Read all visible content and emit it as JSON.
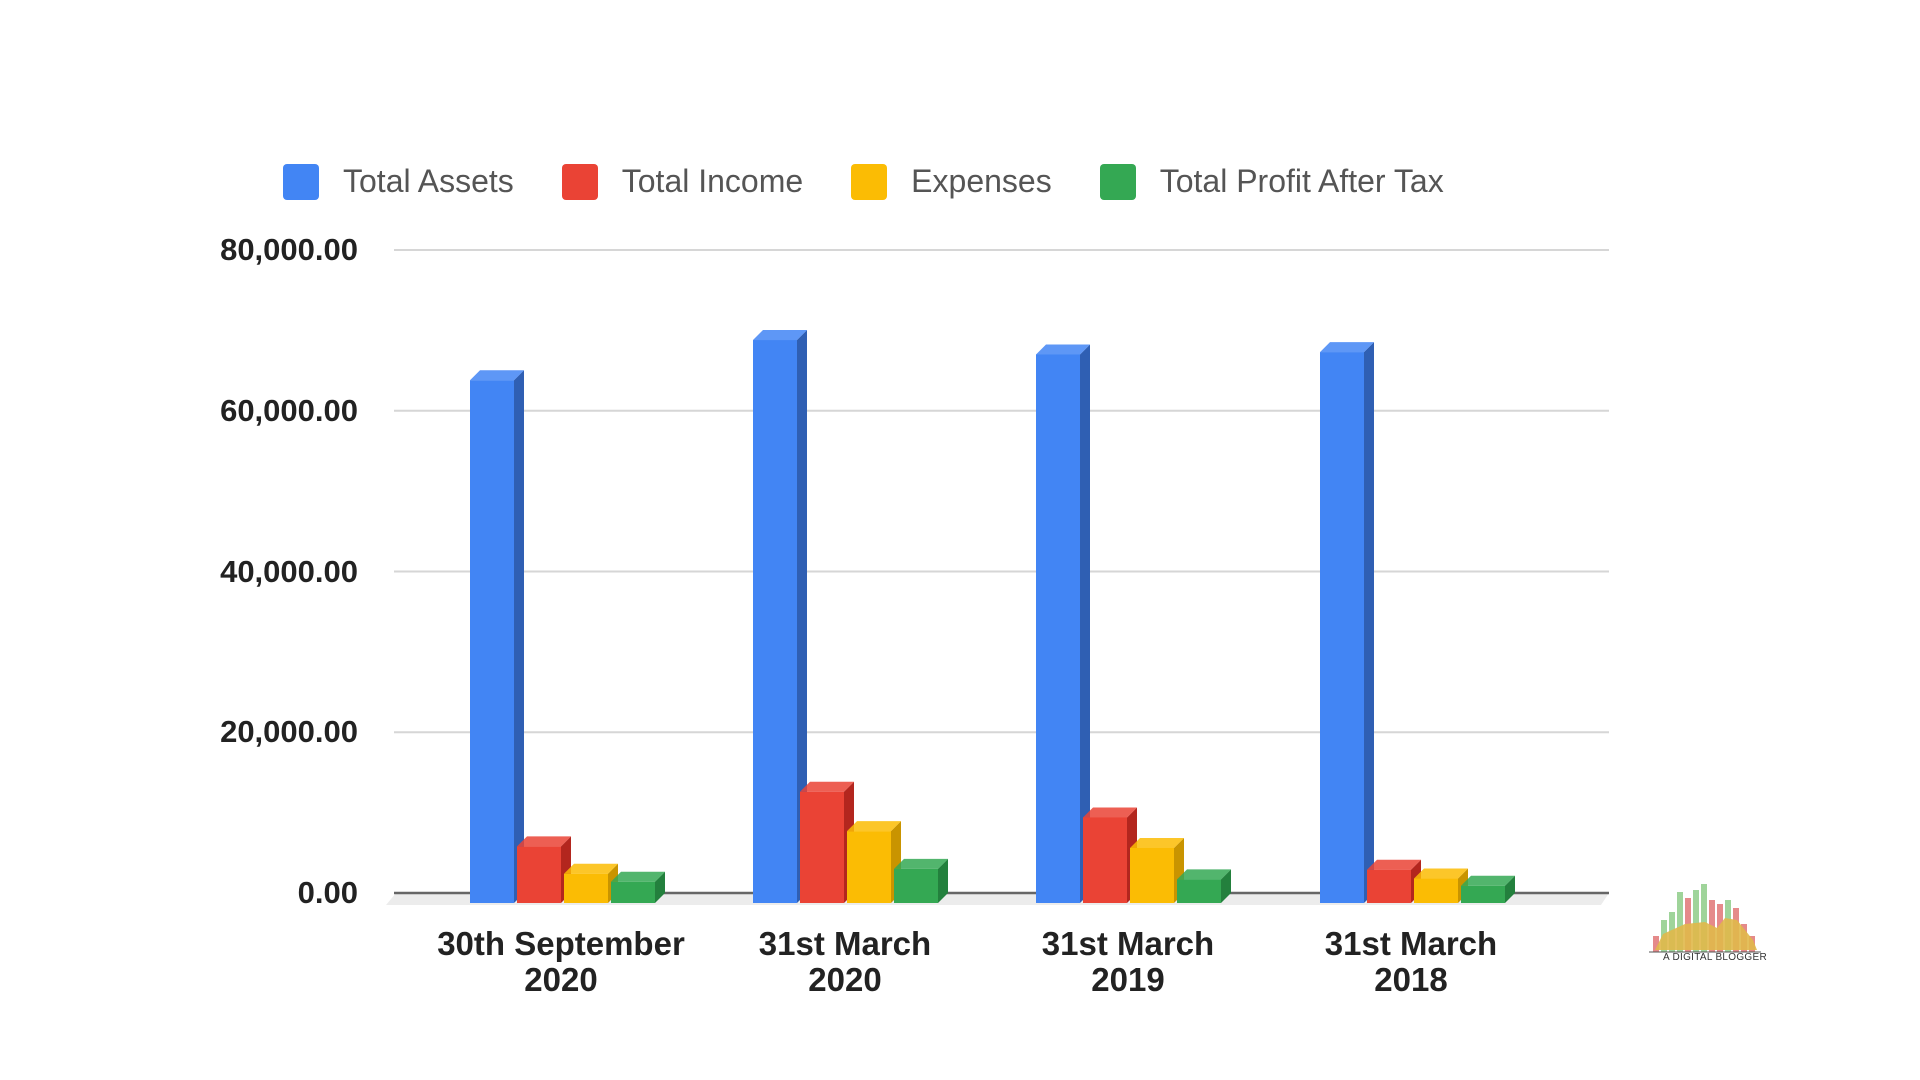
{
  "chart_data": {
    "type": "bar",
    "style": "3d-clustered-column",
    "title": "",
    "xlabel": "",
    "ylabel": "",
    "categories": [
      "30th September 2020",
      "31st March 2020",
      "31st March 2019",
      "31st March 2018"
    ],
    "category_lines": [
      [
        "30th September",
        "2020"
      ],
      [
        "31st March",
        "2020"
      ],
      [
        "31st March",
        "2019"
      ],
      [
        "31st March",
        "2018"
      ]
    ],
    "series": [
      {
        "name": "Total Assets",
        "color": "#4285F4",
        "side_color": "#2F5FB3",
        "values": [
          63800,
          68800,
          67000,
          67300
        ]
      },
      {
        "name": "Total Income",
        "color": "#EA4335",
        "side_color": "#B3261E",
        "values": [
          5800,
          12600,
          9400,
          2900
        ]
      },
      {
        "name": "Expenses",
        "color": "#FBBC04",
        "side_color": "#C99400",
        "values": [
          2400,
          7700,
          5600,
          1800
        ]
      },
      {
        "name": "Total Profit After Tax",
        "color": "#34A853",
        "side_color": "#23803D",
        "values": [
          1400,
          3000,
          1700,
          900
        ]
      }
    ],
    "ylim": [
      0,
      80000
    ],
    "yticks": [
      0,
      20000,
      40000,
      60000,
      80000
    ],
    "ytick_labels": [
      "0.00",
      "20,000.00",
      "40,000.00",
      "60,000.00",
      "80,000.00"
    ],
    "grid": true,
    "legend_position": "top"
  },
  "legend": {
    "items": [
      {
        "label": "Total Assets",
        "color": "#4285F4"
      },
      {
        "label": "Total Income",
        "color": "#EA4335"
      },
      {
        "label": "Expenses",
        "color": "#FBBC04"
      },
      {
        "label": "Total Profit After Tax",
        "color": "#34A853"
      }
    ]
  },
  "watermark": {
    "text": "A DIGITAL BLOGGER"
  }
}
